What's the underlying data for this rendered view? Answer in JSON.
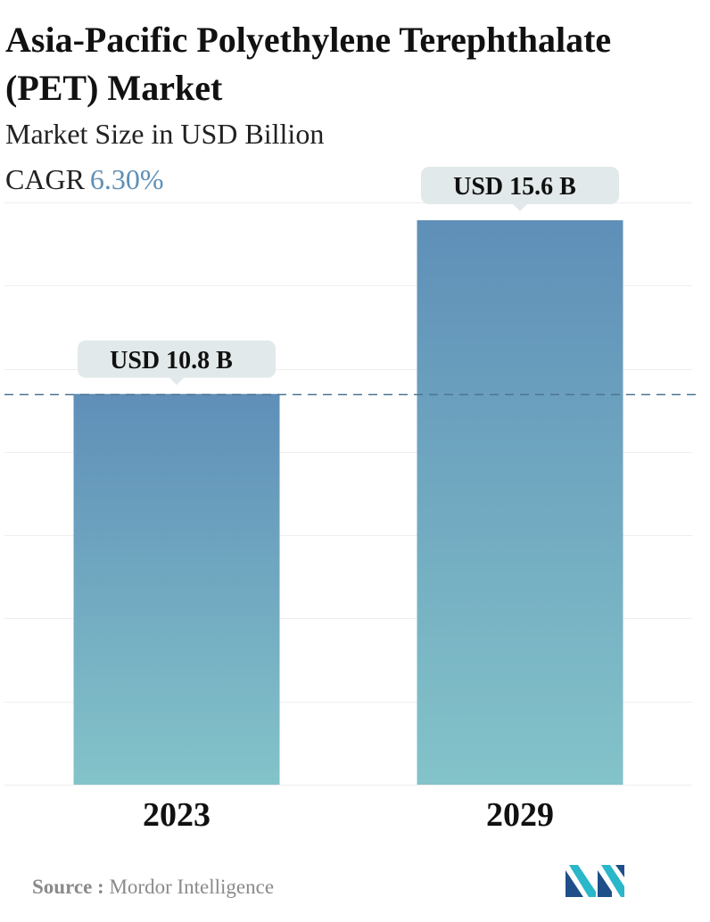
{
  "title": "Asia-Pacific Polyethylene Terephthalate (PET) Market",
  "subtitle": "Market Size in USD Billion",
  "cagr": {
    "label": "CAGR",
    "value": "6.30%"
  },
  "source": {
    "label": "Source :",
    "value": "Mordor Intelligence"
  },
  "logo": {
    "icon": "mordor-intelligence-logo-icon"
  },
  "colors": {
    "bar_top": "#5f8fb8",
    "bar_bottom": "#83c3c9",
    "callout_bg": "#e2e9ea",
    "reference_line": "#4f7490",
    "cagr_value": "#5f8fb5",
    "logo_dark": "#1f4f8a",
    "logo_light": "#29b7c9"
  },
  "chart_data": {
    "type": "bar",
    "categories": [
      "2023",
      "2029"
    ],
    "values": [
      10.8,
      15.6
    ],
    "value_labels": [
      "USD 10.8 B",
      "USD 15.6 B"
    ],
    "ylim": [
      0,
      16.3
    ],
    "grid": true,
    "reference_line_value": 10.8,
    "xlabel": "",
    "ylabel": ""
  }
}
